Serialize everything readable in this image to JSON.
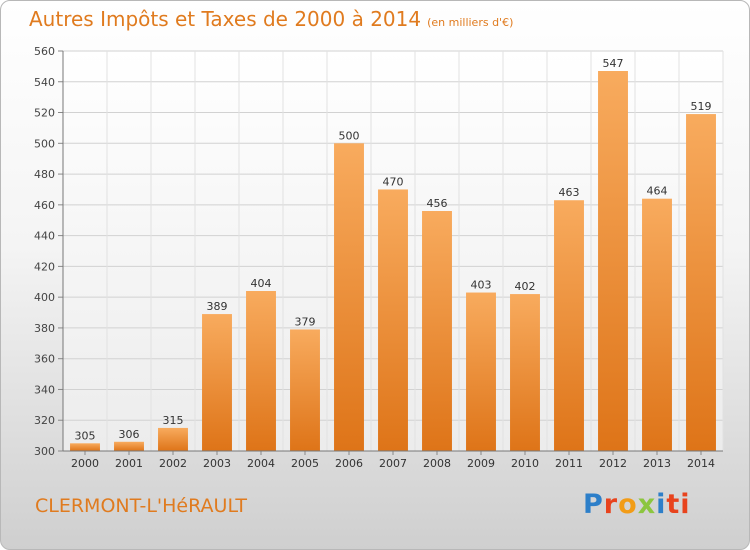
{
  "header": {
    "title": "Autres Impôts et Taxes de 2000 à 2014",
    "unit": "(en milliers d'€)"
  },
  "footer": {
    "city": "CLERMONT-L'HéRAULT",
    "logo_letters": [
      "P",
      "r",
      "o",
      "x",
      "i",
      "ti"
    ]
  },
  "colors": {
    "accent": "#e07b1f",
    "bar_light": "#f7a85a",
    "bar_dark": "#e0781a"
  },
  "chart_data": {
    "type": "bar",
    "title": "Autres Impôts et Taxes de 2000 à 2014",
    "subtitle": "(en milliers d'€)",
    "categories": [
      "2000",
      "2001",
      "2002",
      "2003",
      "2004",
      "2005",
      "2006",
      "2007",
      "2008",
      "2009",
      "2010",
      "2011",
      "2012",
      "2013",
      "2014"
    ],
    "values": [
      305,
      306,
      315,
      389,
      404,
      379,
      500,
      470,
      456,
      403,
      402,
      463,
      547,
      464,
      519
    ],
    "data_labels": [
      "305",
      "306",
      "315",
      "389",
      "404",
      "379",
      "500",
      "470",
      "456",
      "403",
      "402",
      "463",
      "547",
      "464",
      "519"
    ],
    "ylim": [
      300,
      560
    ],
    "yticks": [
      300,
      320,
      340,
      360,
      380,
      400,
      420,
      440,
      460,
      480,
      500,
      520,
      540,
      560
    ],
    "ytick_labels": [
      "300",
      "320",
      "340",
      "360",
      "380",
      "400",
      "420",
      "440",
      "460",
      "480",
      "500",
      "520",
      "540",
      "560"
    ],
    "grid": true,
    "xlabel": "",
    "ylabel": ""
  }
}
